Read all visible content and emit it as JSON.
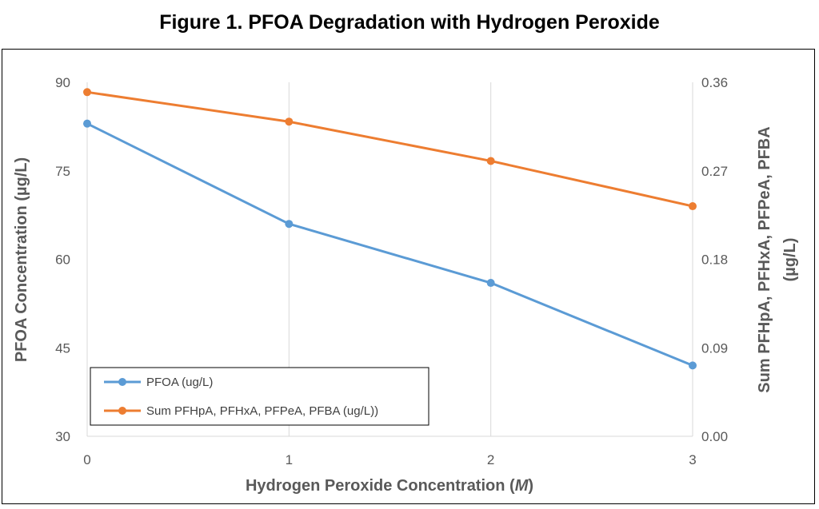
{
  "chart_data": {
    "type": "line",
    "title": "Figure 1. PFOA Degradation with Hydrogen Peroxide",
    "xlabel": "Hydrogen Peroxide Concentration (",
    "xlabel_unit": "M",
    "xlabel_end": ")",
    "ylabel": "PFOA Concentration (µg/L)",
    "y2label_line1": "Sum PFHpA, PFHxA, PFPeA, PFBA",
    "y2label_line2": "(µg/L)",
    "x": [
      0,
      1,
      2,
      3
    ],
    "xlim": [
      0,
      3
    ],
    "xticks": [
      "0",
      "1",
      "2",
      "3"
    ],
    "ylim": [
      30,
      90
    ],
    "yticks": [
      "30",
      "45",
      "60",
      "75",
      "90"
    ],
    "y2lim": [
      0,
      0.36
    ],
    "y2ticks": [
      "0.00",
      "0.09",
      "0.18",
      "0.27",
      "0.36"
    ],
    "grid": "vertical",
    "legend_position": "bottom-left",
    "series": [
      {
        "name": "PFOA (ug/L)",
        "axis": "left",
        "color": "#5B9BD5",
        "values": [
          83,
          66,
          56,
          42
        ]
      },
      {
        "name": "Sum PFHpA, PFHxA, PFPeA, PFBA (ug/L))",
        "axis": "right",
        "color": "#ED7D31",
        "values": [
          0.35,
          0.32,
          0.28,
          0.234
        ]
      }
    ]
  }
}
